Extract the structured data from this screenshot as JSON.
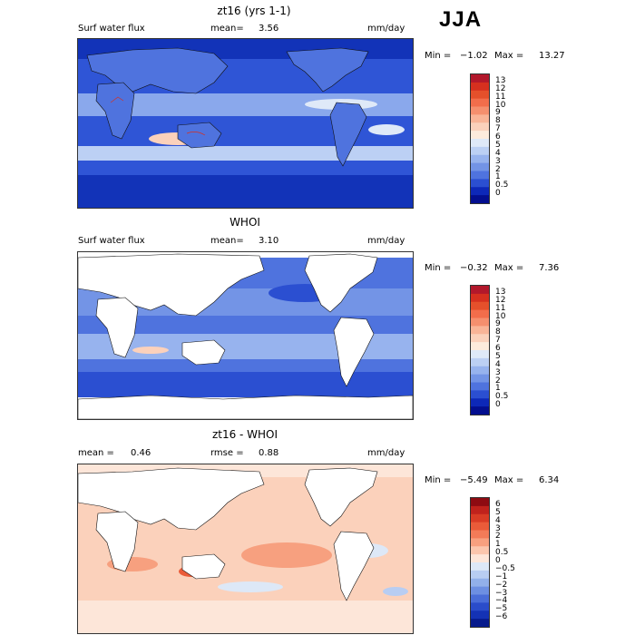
{
  "season": "JJA",
  "panels": [
    {
      "title": "zt16 (yrs 1-1)",
      "left_label": "Surf water flux",
      "mean_label": "mean=",
      "mean_value": "3.56",
      "units": "mm/day",
      "min_label": "Min =",
      "min_value": "−1.02",
      "max_label": "Max =",
      "max_value": "13.27"
    },
    {
      "title": "WHOI",
      "left_label": "Surf water flux",
      "mean_label": "mean=",
      "mean_value": "3.10",
      "units": "mm/day",
      "min_label": "Min =",
      "min_value": "−0.32",
      "max_label": "Max =",
      "max_value": "7.36"
    },
    {
      "title": "zt16 - WHOI",
      "left_label": "mean =",
      "mean_label": "rmse =",
      "left_value": "0.46",
      "mean_value": "0.88",
      "units": "mm/day",
      "min_label": "Min =",
      "min_value": "−5.49",
      "max_label": "Max =",
      "max_value": "6.34"
    }
  ],
  "chart_data": [
    {
      "type": "heatmap",
      "title": "zt16 (yrs 1-1)",
      "variable": "Surf water flux",
      "units": "mm/day",
      "mean": 3.56,
      "min": -1.02,
      "max": 13.27,
      "colorbar_levels": [
        "13",
        "12",
        "11",
        "10",
        "9",
        "8",
        "7",
        "6",
        "5",
        "4",
        "3",
        "2",
        "1",
        "0.5",
        "0"
      ],
      "colorbar_colors": [
        "#b2182b",
        "#d6301f",
        "#e5502b",
        "#f26d4b",
        "#f58f6e",
        "#f9b497",
        "#fbd1bb",
        "#fdebdc",
        "#dfe9f8",
        "#bcd0f4",
        "#97b3ee",
        "#7394e6",
        "#4f73de",
        "#2b4fd1",
        "#0d28b8",
        "#030e8f"
      ]
    },
    {
      "type": "heatmap",
      "title": "WHOI",
      "variable": "Surf water flux",
      "units": "mm/day",
      "mean": 3.1,
      "min": -0.32,
      "max": 7.36,
      "colorbar_levels": [
        "13",
        "12",
        "11",
        "10",
        "9",
        "8",
        "7",
        "6",
        "5",
        "4",
        "3",
        "2",
        "1",
        "0.5",
        "0"
      ],
      "colorbar_colors": [
        "#b2182b",
        "#d6301f",
        "#e5502b",
        "#f26d4b",
        "#f58f6e",
        "#f9b497",
        "#fbd1bb",
        "#fdebdc",
        "#dfe9f8",
        "#bcd0f4",
        "#97b3ee",
        "#7394e6",
        "#4f73de",
        "#2b4fd1",
        "#0d28b8",
        "#030e8f"
      ]
    },
    {
      "type": "heatmap",
      "title": "zt16 - WHOI",
      "units": "mm/day",
      "mean": 0.46,
      "rmse": 0.88,
      "min": -5.49,
      "max": 6.34,
      "colorbar_levels": [
        "6",
        "5",
        "4",
        "3",
        "2",
        "1",
        "0.5",
        "0",
        "−0.5",
        "−1",
        "−2",
        "−3",
        "−4",
        "−5",
        "−6"
      ],
      "colorbar_colors": [
        "#8e0b12",
        "#c0221c",
        "#d93c25",
        "#ea5b39",
        "#f27b58",
        "#f7a07f",
        "#fbc6ad",
        "#fde6d9",
        "#dde8f7",
        "#b8cdf2",
        "#92b0ea",
        "#6d8fe2",
        "#4a6dd8",
        "#2a4cca",
        "#1432b5",
        "#061a8c"
      ]
    }
  ]
}
